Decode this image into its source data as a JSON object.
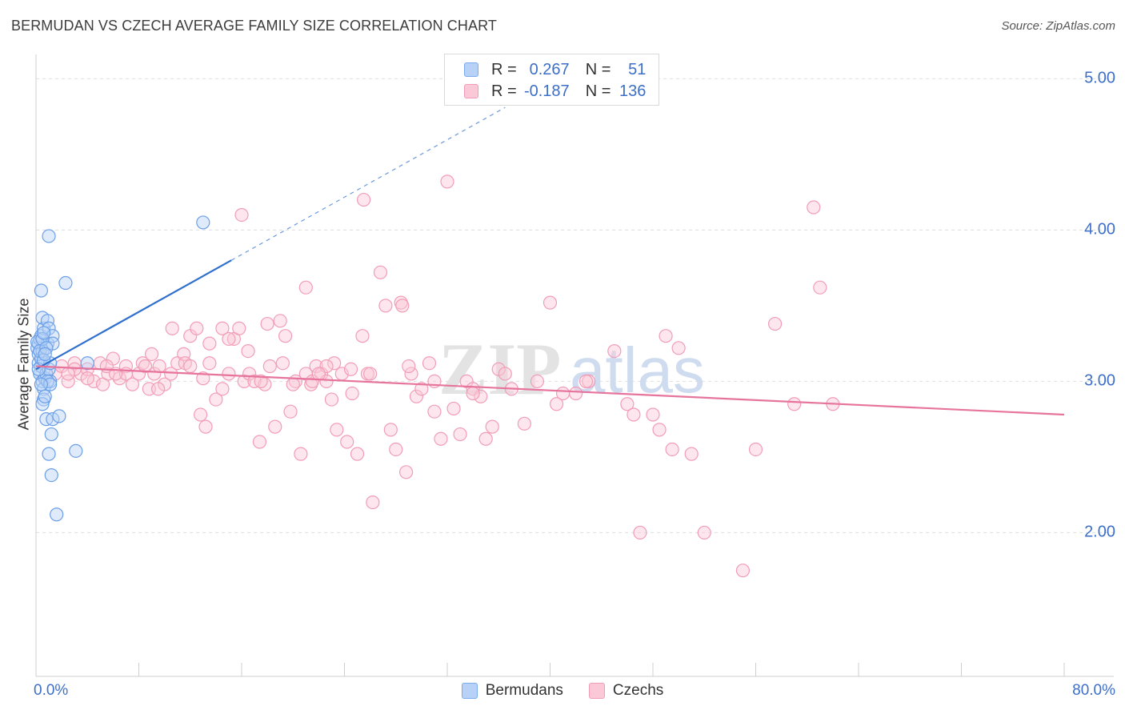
{
  "title": "BERMUDAN VS CZECH AVERAGE FAMILY SIZE CORRELATION CHART",
  "source": "Source: ZipAtlas.com",
  "watermark": {
    "zip": "ZIP",
    "atlas": "atlas"
  },
  "legend_top": [
    {
      "r_label": "R =",
      "r_value": "0.267",
      "n_label": "N =",
      "n_value": "51",
      "color": "#7aaaf0",
      "fill": "#b8d2f7"
    },
    {
      "r_label": "R =",
      "r_value": "-0.187",
      "n_label": "N =",
      "n_value": "136",
      "color": "#f29db8",
      "fill": "#fac8d7"
    }
  ],
  "legend_bottom": [
    {
      "label": "Bermudans",
      "color": "#7aaaf0",
      "fill": "#b8d2f7"
    },
    {
      "label": "Czechs",
      "color": "#f29db8",
      "fill": "#fac8d7"
    }
  ],
  "chart_data": {
    "type": "scatter",
    "title": "BERMUDAN VS CZECH AVERAGE FAMILY SIZE CORRELATION CHART",
    "xlabel": "",
    "ylabel": "Average Family Size",
    "xlim": [
      0,
      80
    ],
    "ylim": [
      1.05,
      5.15
    ],
    "x_tick_labels": [
      "0.0%",
      "80.0%"
    ],
    "y_ticks": [
      2.0,
      3.0,
      4.0,
      5.0
    ],
    "y_tick_labels": [
      "2.00",
      "3.00",
      "4.00",
      "5.00"
    ],
    "grid": true,
    "series": [
      {
        "name": "Bermudans",
        "color": "#6b9fe8",
        "fill": "#b8d2f7",
        "trend": {
          "x0": 0,
          "y0": 3.08,
          "x1": 15.2,
          "y1": 3.8,
          "x_dash_end": 36.5,
          "y_dash_end": 4.81,
          "color": "#2f6fce"
        },
        "points": [
          [
            0.1,
            3.22
          ],
          [
            0.2,
            3.25
          ],
          [
            0.2,
            3.12
          ],
          [
            0.3,
            3.05
          ],
          [
            0.3,
            3.28
          ],
          [
            0.2,
            3.18
          ],
          [
            0.4,
            3.1
          ],
          [
            0.4,
            3.15
          ],
          [
            0.5,
            3.2
          ],
          [
            0.4,
            3.3
          ],
          [
            0.6,
            3.35
          ],
          [
            0.5,
            3.42
          ],
          [
            0.4,
            3.6
          ],
          [
            0.5,
            3.0
          ],
          [
            0.6,
            2.95
          ],
          [
            0.6,
            2.88
          ],
          [
            0.5,
            2.85
          ],
          [
            0.7,
            2.9
          ],
          [
            0.7,
            3.02
          ],
          [
            0.8,
            2.75
          ],
          [
            0.8,
            3.05
          ],
          [
            0.9,
            3.4
          ],
          [
            0.9,
            3.25
          ],
          [
            1.0,
            3.35
          ],
          [
            1.0,
            3.08
          ],
          [
            1.1,
            3.12
          ],
          [
            1.1,
            3.0
          ],
          [
            1.0,
            2.52
          ],
          [
            1.2,
            2.38
          ],
          [
            1.3,
            3.3
          ],
          [
            1.3,
            3.25
          ],
          [
            1.2,
            2.65
          ],
          [
            1.3,
            2.75
          ],
          [
            1.6,
            2.12
          ],
          [
            1.8,
            2.77
          ],
          [
            2.3,
            3.65
          ],
          [
            3.1,
            2.54
          ],
          [
            4.0,
            3.12
          ],
          [
            13.0,
            4.05
          ],
          [
            0.1,
            3.26
          ],
          [
            0.2,
            3.08
          ],
          [
            0.3,
            3.2
          ],
          [
            0.5,
            3.28
          ],
          [
            0.6,
            3.14
          ],
          [
            0.8,
            3.22
          ],
          [
            0.9,
            3.0
          ],
          [
            1.1,
            2.98
          ],
          [
            0.7,
            3.18
          ],
          [
            0.4,
            2.98
          ],
          [
            1.0,
            3.96
          ],
          [
            0.6,
            3.32
          ]
        ]
      },
      {
        "name": "Czechs",
        "color": "#f29db8",
        "fill": "#fac8d7",
        "trend": {
          "x0": 0,
          "y0": 3.1,
          "x1": 80,
          "y1": 2.78,
          "color": "#e6749c"
        },
        "points": [
          [
            1.5,
            3.05
          ],
          [
            2.0,
            3.1
          ],
          [
            2.5,
            3.0
          ],
          [
            3.0,
            3.12
          ],
          [
            3.5,
            3.05
          ],
          [
            4.0,
            3.08
          ],
          [
            4.5,
            3.0
          ],
          [
            5.0,
            3.12
          ],
          [
            5.2,
            2.98
          ],
          [
            5.6,
            3.05
          ],
          [
            6.0,
            3.15
          ],
          [
            6.5,
            3.02
          ],
          [
            7.0,
            3.1
          ],
          [
            7.5,
            2.98
          ],
          [
            8.0,
            3.05
          ],
          [
            8.3,
            3.12
          ],
          [
            8.8,
            2.95
          ],
          [
            9.2,
            3.05
          ],
          [
            9.6,
            3.1
          ],
          [
            10.0,
            2.98
          ],
          [
            10.5,
            3.05
          ],
          [
            11.0,
            3.12
          ],
          [
            11.5,
            3.18
          ],
          [
            12.0,
            3.3
          ],
          [
            12.5,
            3.35
          ],
          [
            12.8,
            2.78
          ],
          [
            13.2,
            2.7
          ],
          [
            13.5,
            3.25
          ],
          [
            14.0,
            2.88
          ],
          [
            14.5,
            2.95
          ],
          [
            15.0,
            3.05
          ],
          [
            15.4,
            3.28
          ],
          [
            15.8,
            3.35
          ],
          [
            16.2,
            3.0
          ],
          [
            16.6,
            3.05
          ],
          [
            17.0,
            3.0
          ],
          [
            17.4,
            2.6
          ],
          [
            17.8,
            2.98
          ],
          [
            18.2,
            3.1
          ],
          [
            18.6,
            2.7
          ],
          [
            19.0,
            3.4
          ],
          [
            19.4,
            3.3
          ],
          [
            19.8,
            2.8
          ],
          [
            20.2,
            3.0
          ],
          [
            20.6,
            2.52
          ],
          [
            21.0,
            3.05
          ],
          [
            21.4,
            2.98
          ],
          [
            21.8,
            3.1
          ],
          [
            22.2,
            3.05
          ],
          [
            22.6,
            3.0
          ],
          [
            23.0,
            2.88
          ],
          [
            23.4,
            2.68
          ],
          [
            23.8,
            3.05
          ],
          [
            24.2,
            2.6
          ],
          [
            24.6,
            2.92
          ],
          [
            25.0,
            2.52
          ],
          [
            25.4,
            3.3
          ],
          [
            25.8,
            3.05
          ],
          [
            26.2,
            2.2
          ],
          [
            26.8,
            3.72
          ],
          [
            27.2,
            3.5
          ],
          [
            27.6,
            2.68
          ],
          [
            28.0,
            2.55
          ],
          [
            28.4,
            3.52
          ],
          [
            28.8,
            2.4
          ],
          [
            29.2,
            3.05
          ],
          [
            29.6,
            2.9
          ],
          [
            30.0,
            2.95
          ],
          [
            30.6,
            3.12
          ],
          [
            31.0,
            2.8
          ],
          [
            31.5,
            2.62
          ],
          [
            32.0,
            4.32
          ],
          [
            32.5,
            2.82
          ],
          [
            33.0,
            2.65
          ],
          [
            33.5,
            3.0
          ],
          [
            34.0,
            2.95
          ],
          [
            34.6,
            2.9
          ],
          [
            35.0,
            2.62
          ],
          [
            35.5,
            2.7
          ],
          [
            36.0,
            3.08
          ],
          [
            37.0,
            2.95
          ],
          [
            38.0,
            2.72
          ],
          [
            39.0,
            3.0
          ],
          [
            40.0,
            3.52
          ],
          [
            40.5,
            2.85
          ],
          [
            41.0,
            2.92
          ],
          [
            42.0,
            2.92
          ],
          [
            43.0,
            3.0
          ],
          [
            45.0,
            3.2
          ],
          [
            46.0,
            2.85
          ],
          [
            46.5,
            2.78
          ],
          [
            47.0,
            2.0
          ],
          [
            48.0,
            2.78
          ],
          [
            48.5,
            2.68
          ],
          [
            49.0,
            3.3
          ],
          [
            49.5,
            2.55
          ],
          [
            50.0,
            3.22
          ],
          [
            51.0,
            2.52
          ],
          [
            52.0,
            2.0
          ],
          [
            55.0,
            1.75
          ],
          [
            56.0,
            2.55
          ],
          [
            57.5,
            3.38
          ],
          [
            59.0,
            2.85
          ],
          [
            60.5,
            4.15
          ],
          [
            61.0,
            3.62
          ],
          [
            62.0,
            2.85
          ],
          [
            16.0,
            4.1
          ],
          [
            21.0,
            3.62
          ],
          [
            25.5,
            4.2
          ],
          [
            28.5,
            3.5
          ],
          [
            10.6,
            3.35
          ],
          [
            9.0,
            3.18
          ],
          [
            13.5,
            3.12
          ],
          [
            19.2,
            3.12
          ],
          [
            23.2,
            3.12
          ],
          [
            15.0,
            3.28
          ],
          [
            7.0,
            3.05
          ],
          [
            5.5,
            3.1
          ],
          [
            4.0,
            3.02
          ],
          [
            3.0,
            3.08
          ],
          [
            2.5,
            3.05
          ],
          [
            20.0,
            2.98
          ],
          [
            24.5,
            3.08
          ],
          [
            31.0,
            3.0
          ],
          [
            11.6,
            3.12
          ],
          [
            13.0,
            3.02
          ],
          [
            17.5,
            3.0
          ],
          [
            21.5,
            3.0
          ],
          [
            26.0,
            3.05
          ],
          [
            14.5,
            3.35
          ],
          [
            22.6,
            3.1
          ],
          [
            8.5,
            3.1
          ],
          [
            6.2,
            3.05
          ],
          [
            36.5,
            3.05
          ],
          [
            42.8,
            3.0
          ],
          [
            34.0,
            2.92
          ],
          [
            22.0,
            3.05
          ],
          [
            16.5,
            3.2
          ],
          [
            18.0,
            3.38
          ],
          [
            9.5,
            2.95
          ],
          [
            12.0,
            3.1
          ],
          [
            29.0,
            3.1
          ]
        ]
      }
    ]
  }
}
